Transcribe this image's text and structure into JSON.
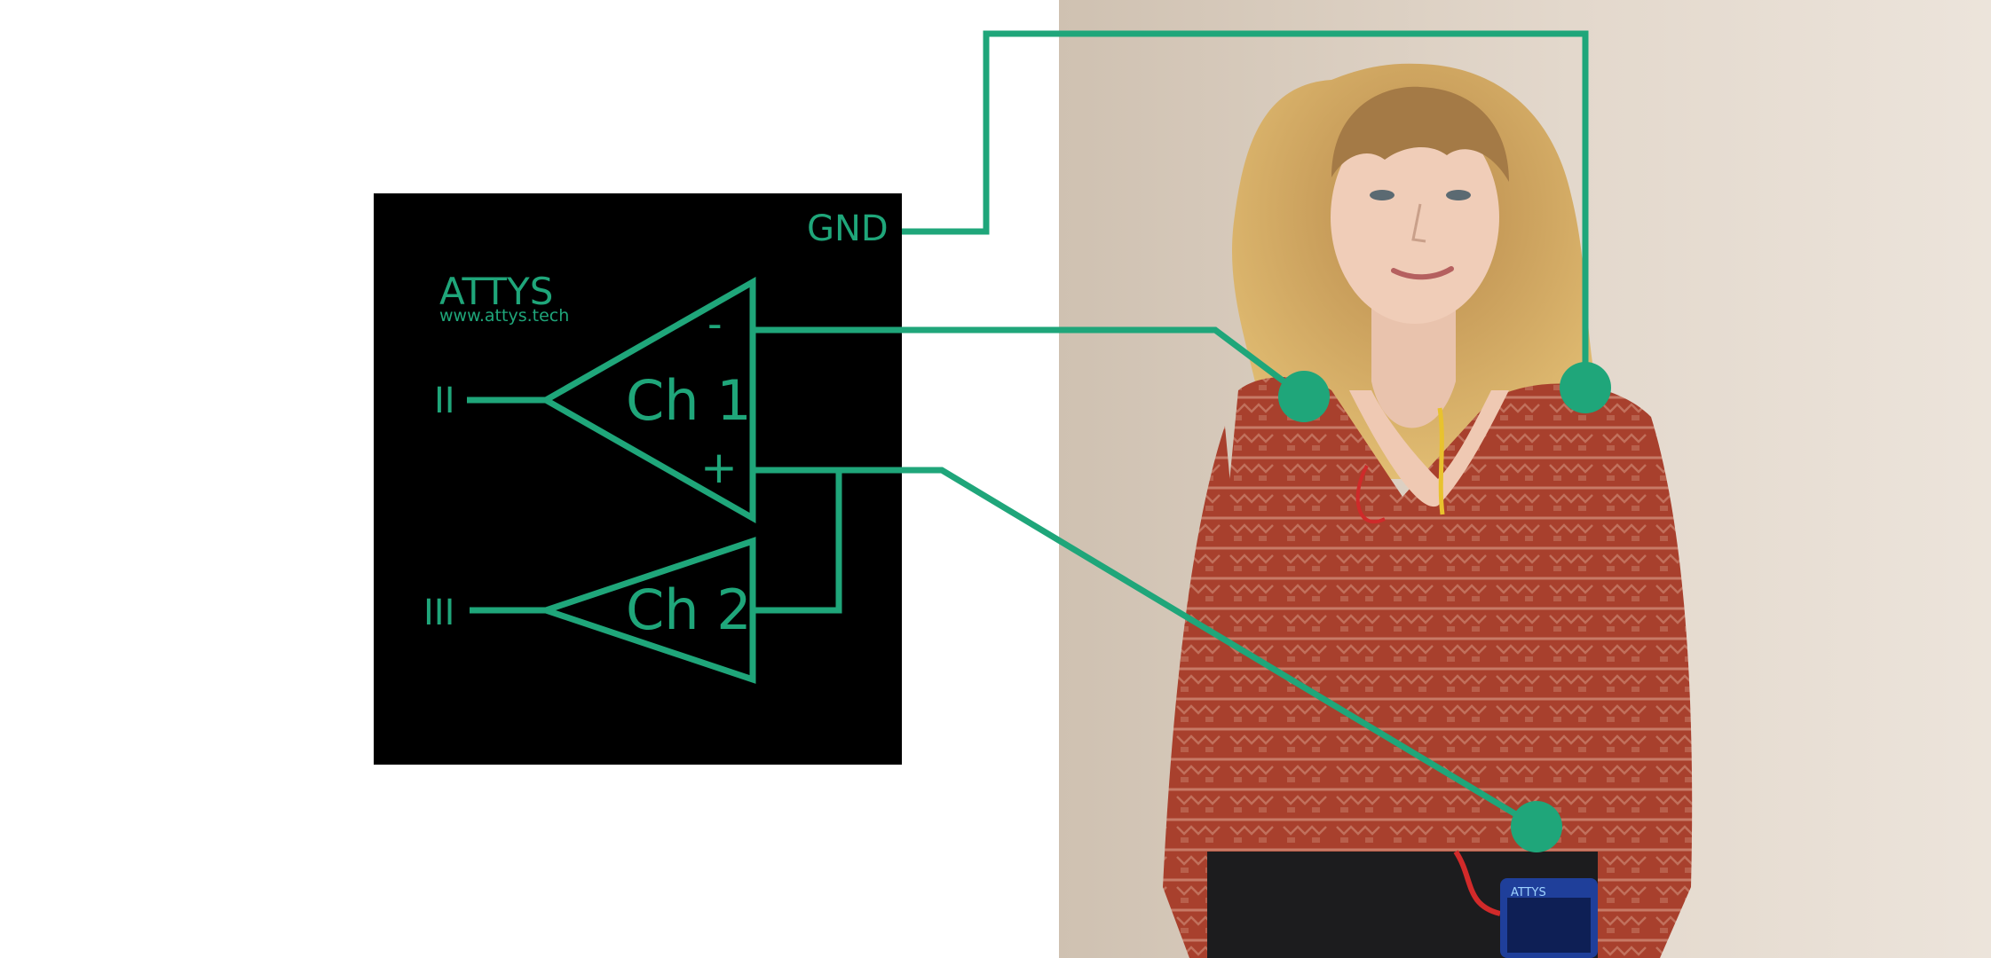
{
  "colors": {
    "accent": "#1fa67a",
    "box": "#000000",
    "wall": "#ded2c5",
    "shirt": "#a8402d",
    "hair": "#d1a55c"
  },
  "device": {
    "brand": "ATTYS",
    "url": "www.attys.tech",
    "gnd_label": "GND",
    "minus_label": "-",
    "plus_label": "+",
    "channels": [
      {
        "name": "Ch 1",
        "output_label": "II"
      },
      {
        "name": "Ch 2",
        "output_label": "III"
      }
    ]
  },
  "photo": {
    "device_label": "ATTYS"
  }
}
